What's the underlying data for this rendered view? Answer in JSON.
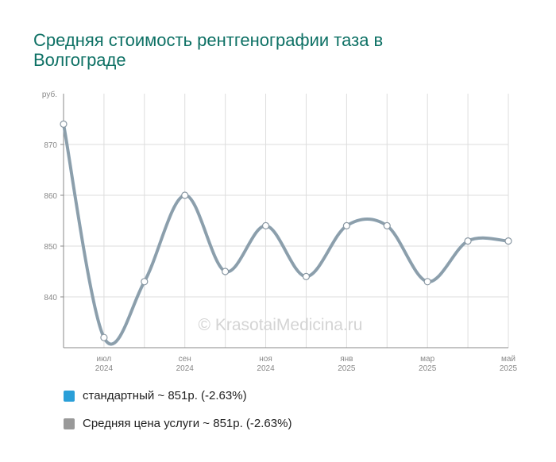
{
  "chart_data": {
    "type": "line",
    "title": "Средняя стоимость рентгенографии таза в Волгограде",
    "ylabel": "руб.",
    "xlabel": "",
    "ylim": [
      830,
      880
    ],
    "yticks": [
      840,
      850,
      860,
      870
    ],
    "x": [
      0,
      1,
      2,
      3,
      4,
      5,
      6,
      7,
      8,
      9,
      10,
      11
    ],
    "xlim": [
      0,
      11
    ],
    "xtick_positions": [
      1,
      3,
      5,
      7,
      9,
      11
    ],
    "xtick_labels": [
      [
        "июл",
        "2024"
      ],
      [
        "сен",
        "2024"
      ],
      [
        "ноя",
        "2024"
      ],
      [
        "янв",
        "2025"
      ],
      [
        "мар",
        "2025"
      ],
      [
        "май",
        "2025"
      ]
    ],
    "series": [
      {
        "name": "стандартный ~ 851р. (-2.63%)",
        "color": "#2a9fd8",
        "values": [
          874,
          832,
          843,
          860,
          845,
          854,
          844,
          854,
          854,
          843,
          851,
          851
        ]
      },
      {
        "name": "Средняя цена услуги ~ 851р. (-2.63%)",
        "color": "#999999",
        "values": [
          874,
          832,
          843,
          860,
          845,
          854,
          844,
          854,
          854,
          843,
          851,
          851
        ]
      }
    ],
    "grid": true,
    "legend": "bottom-left",
    "watermark": "© KrasotaiMedicina.ru"
  }
}
